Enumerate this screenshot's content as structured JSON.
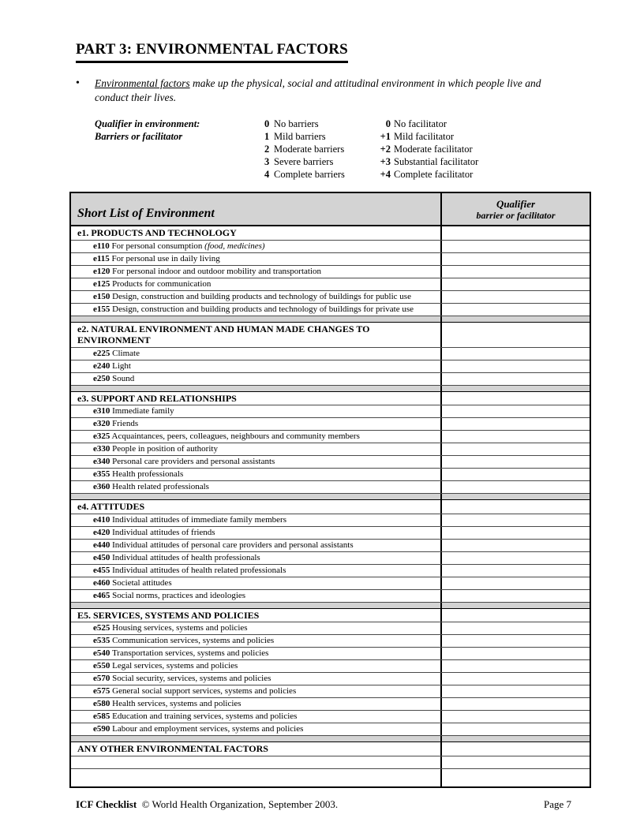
{
  "page": {
    "title": "PART 3: ENVIRONMENTAL FACTORS",
    "bullet_char": "•",
    "intro_underlined": "Environmental factors",
    "intro_rest": " make up the physical, social and attitudinal environment in which people live and conduct their lives."
  },
  "qualifier_legend": {
    "label_line1": "Qualifier in environment:",
    "label_line2": "Barriers or facilitator",
    "barriers": [
      {
        "num": "0",
        "text": "No barriers"
      },
      {
        "num": "1",
        "text": "Mild barriers"
      },
      {
        "num": "2",
        "text": "Moderate barriers"
      },
      {
        "num": "3",
        "text": "Severe barriers"
      },
      {
        "num": "4",
        "text": "Complete barriers"
      }
    ],
    "facilitators": [
      {
        "num": "0",
        "text": "No facilitator"
      },
      {
        "num": "+1",
        "text": "Mild facilitator"
      },
      {
        "num": "+2",
        "text": "Moderate facilitator"
      },
      {
        "num": "+3",
        "text": "Substantial facilitator"
      },
      {
        "num": "+4",
        "text": "Complete facilitator"
      }
    ]
  },
  "table": {
    "header_left": "Short List of Environment",
    "header_right_line1": "Qualifier",
    "header_right_line2": "barrier or facilitator",
    "colors": {
      "header_bg": "#d3d3d3",
      "spacer_bg": "#d3d3d3"
    },
    "sections": [
      {
        "title": "e1. PRODUCTS AND TECHNOLOGY",
        "rows": [
          {
            "code": "e110",
            "text": "For personal consumption",
            "note": "(food, medicines)"
          },
          {
            "code": "e115",
            "text": "For personal use in daily living"
          },
          {
            "code": "e120",
            "text": "For personal indoor and outdoor mobility and transportation"
          },
          {
            "code": "e125",
            "text": "Products for communication"
          },
          {
            "code": "e150",
            "text": "Design, construction and building products and technology of buildings for public use"
          },
          {
            "code": "e155",
            "text": "Design, construction and building products and technology of buildings for private use"
          }
        ]
      },
      {
        "title": "e2. NATURAL ENVIRONMENT AND HUMAN MADE CHANGES TO\nENVIRONMENT",
        "rows": [
          {
            "code": "e225",
            "text": "Climate"
          },
          {
            "code": "e240",
            "text": "Light"
          },
          {
            "code": "e250",
            "text": "Sound"
          }
        ]
      },
      {
        "title": "e3. SUPPORT AND RELATIONSHIPS",
        "rows": [
          {
            "code": "e310",
            "text": "Immediate family"
          },
          {
            "code": "e320",
            "text": "Friends"
          },
          {
            "code": "e325",
            "text": "Acquaintances, peers, colleagues, neighbours and community members"
          },
          {
            "code": "e330",
            "text": "People in position of authority"
          },
          {
            "code": "e340",
            "text": "Personal care providers and personal assistants"
          },
          {
            "code": "e355",
            "text": "Health professionals"
          },
          {
            "code": "e360",
            "text": "Health related professionals"
          }
        ]
      },
      {
        "title": "e4. ATTITUDES",
        "rows": [
          {
            "code": "e410",
            "text": "Individual attitudes of immediate family members"
          },
          {
            "code": "e420",
            "text": "Individual attitudes of friends"
          },
          {
            "code": "e440",
            "text": "Individual attitudes of personal care providers and personal assistants"
          },
          {
            "code": "e450",
            "text": "Individual attitudes of health professionals"
          },
          {
            "code": "e455",
            "text": "Individual attitudes of health related professionals"
          },
          {
            "code": "e460",
            "text": "Societal attitudes"
          },
          {
            "code": "e465",
            "text": "Social norms, practices and ideologies"
          }
        ]
      },
      {
        "title": "E5. SERVICES, SYSTEMS AND POLICIES",
        "rows": [
          {
            "code": "e525",
            "text": "Housing services, systems and policies"
          },
          {
            "code": "e535",
            "text": "Communication services, systems and policies"
          },
          {
            "code": "e540",
            "text": "Transportation services, systems and policies"
          },
          {
            "code": "e550",
            "text": "Legal services, systems and policies"
          },
          {
            "code": "e570",
            "text": "Social security, services, systems and policies"
          },
          {
            "code": "e575",
            "text": "General social support services, systems and policies"
          },
          {
            "code": "e580",
            "text": "Health services, systems and policies"
          },
          {
            "code": "e585",
            "text": "Education and training services, systems and policies"
          },
          {
            "code": "e590",
            "text": "Labour and employment services, systems and policies"
          }
        ]
      },
      {
        "title": "ANY OTHER ENVIRONMENTAL FACTORS",
        "rows": [],
        "empty_rows": 2
      }
    ]
  },
  "footer": {
    "brand": "ICF Checklist",
    "copyright": "© World Health Organization, September 2003.",
    "page_number": "Page 7"
  }
}
